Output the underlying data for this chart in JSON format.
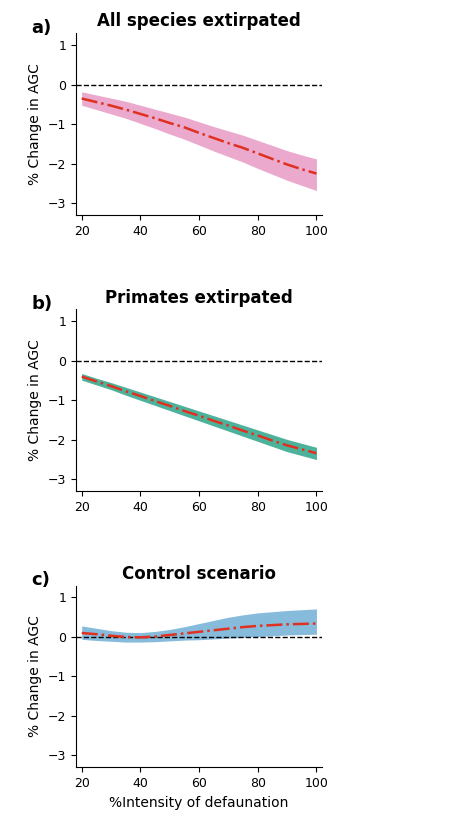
{
  "panels": [
    {
      "label": "a)",
      "title": "All species extirpated",
      "fill_color": "#e8a0c8",
      "line_color": "#e03020",
      "x": [
        20,
        25,
        30,
        35,
        40,
        45,
        50,
        55,
        60,
        65,
        70,
        75,
        80,
        85,
        90,
        95,
        100
      ],
      "y_mean": [
        -0.35,
        -0.44,
        -0.53,
        -0.63,
        -0.74,
        -0.85,
        -0.97,
        -1.08,
        -1.22,
        -1.35,
        -1.48,
        -1.6,
        -1.74,
        -1.88,
        -2.02,
        -2.14,
        -2.25
      ],
      "y_upper": [
        -0.18,
        -0.26,
        -0.34,
        -0.42,
        -0.52,
        -0.62,
        -0.72,
        -0.82,
        -0.94,
        -1.06,
        -1.17,
        -1.28,
        -1.41,
        -1.54,
        -1.67,
        -1.78,
        -1.88
      ],
      "y_lower": [
        -0.52,
        -0.63,
        -0.74,
        -0.85,
        -0.98,
        -1.11,
        -1.25,
        -1.38,
        -1.53,
        -1.68,
        -1.82,
        -1.96,
        -2.12,
        -2.27,
        -2.42,
        -2.55,
        -2.68
      ]
    },
    {
      "label": "b)",
      "title": "Primates extirpated",
      "fill_color": "#3aaa90",
      "line_color": "#e03020",
      "x": [
        20,
        25,
        30,
        35,
        40,
        45,
        50,
        55,
        60,
        65,
        70,
        75,
        80,
        85,
        90,
        95,
        100
      ],
      "y_mean": [
        -0.4,
        -0.52,
        -0.64,
        -0.77,
        -0.89,
        -1.02,
        -1.14,
        -1.27,
        -1.39,
        -1.52,
        -1.64,
        -1.77,
        -1.89,
        -2.02,
        -2.14,
        -2.24,
        -2.34
      ],
      "y_upper": [
        -0.32,
        -0.44,
        -0.55,
        -0.67,
        -0.79,
        -0.91,
        -1.03,
        -1.15,
        -1.27,
        -1.39,
        -1.51,
        -1.63,
        -1.75,
        -1.87,
        -1.99,
        -2.09,
        -2.19
      ],
      "y_lower": [
        -0.49,
        -0.61,
        -0.73,
        -0.87,
        -1.0,
        -1.13,
        -1.26,
        -1.39,
        -1.52,
        -1.65,
        -1.78,
        -1.91,
        -2.04,
        -2.17,
        -2.3,
        -2.4,
        -2.5
      ]
    },
    {
      "label": "c)",
      "title": "Control scenario",
      "fill_color": "#7ab4d8",
      "line_color": "#e03020",
      "x": [
        20,
        25,
        30,
        35,
        40,
        45,
        50,
        55,
        60,
        65,
        70,
        75,
        80,
        85,
        90,
        95,
        100
      ],
      "y_mean": [
        0.1,
        0.07,
        0.03,
        0.0,
        -0.01,
        0.01,
        0.05,
        0.09,
        0.13,
        0.17,
        0.21,
        0.25,
        0.28,
        0.3,
        0.32,
        0.33,
        0.34
      ],
      "y_upper": [
        0.28,
        0.22,
        0.16,
        0.12,
        0.11,
        0.14,
        0.19,
        0.26,
        0.34,
        0.42,
        0.5,
        0.56,
        0.61,
        0.64,
        0.67,
        0.69,
        0.71
      ],
      "y_lower": [
        -0.06,
        -0.09,
        -0.11,
        -0.13,
        -0.13,
        -0.12,
        -0.1,
        -0.08,
        -0.07,
        -0.05,
        -0.03,
        -0.01,
        0.01,
        0.03,
        0.05,
        0.06,
        0.07
      ]
    }
  ],
  "ylim": [
    -3.3,
    1.3
  ],
  "yticks": [
    -3,
    -2,
    -1,
    0,
    1
  ],
  "xlim": [
    18,
    102
  ],
  "xticks": [
    20,
    40,
    60,
    80,
    100
  ],
  "xlabel": "%Intensity of defaunation",
  "ylabel": "% Change in AGC",
  "bg_color": "#ffffff",
  "label_fontsize": 13,
  "title_fontsize": 12,
  "axis_label_fontsize": 10,
  "tick_fontsize": 9
}
